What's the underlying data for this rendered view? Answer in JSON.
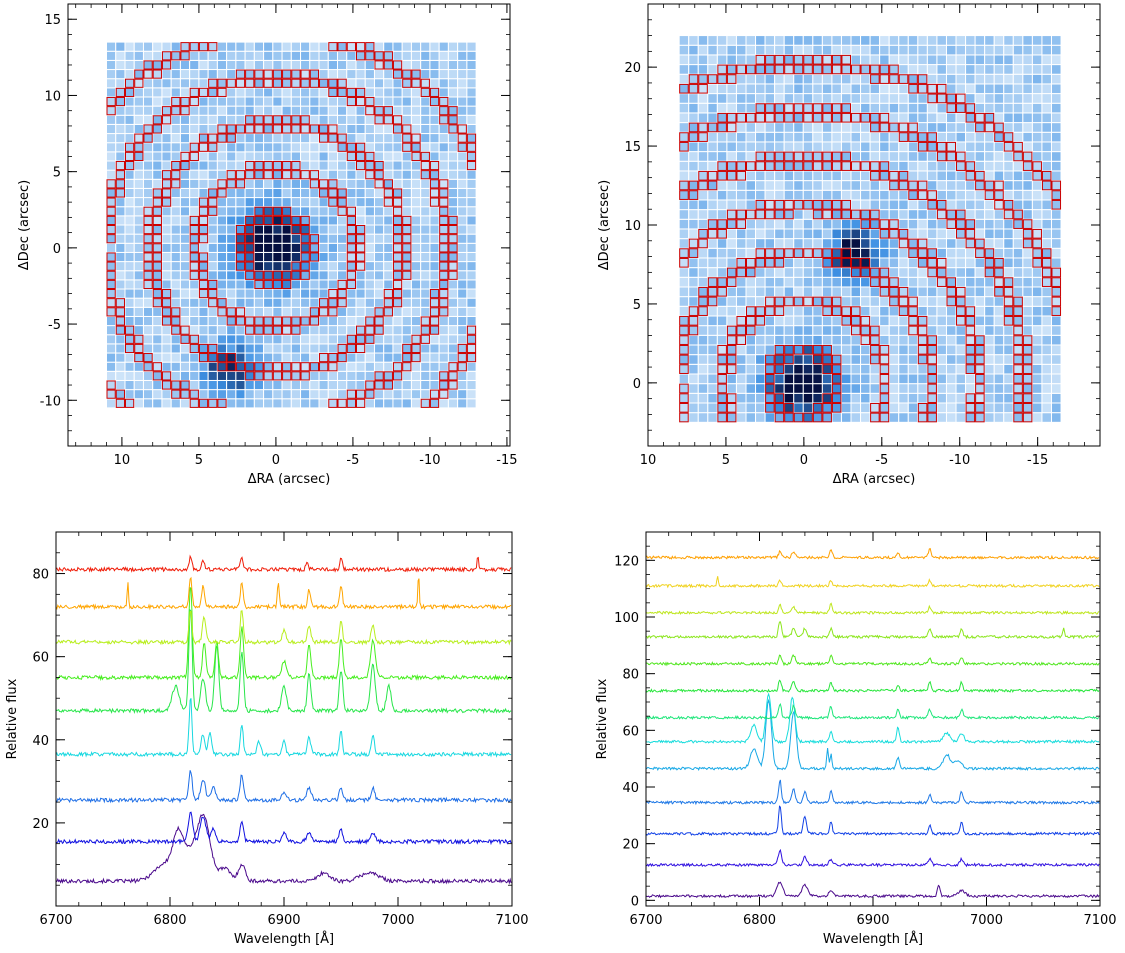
{
  "chart_data": [
    {
      "panel": "top-left",
      "type": "heatmap",
      "title": "",
      "xlabel": "ΔRA (arcsec)",
      "ylabel": "ΔDec (arcsec)",
      "xlim": [
        13.5,
        -15.2
      ],
      "ylim": [
        -13,
        16
      ],
      "xticks": [
        10,
        5,
        0,
        -5,
        -10,
        -15
      ],
      "yticks": [
        -10,
        -5,
        0,
        5,
        10,
        15
      ],
      "grid_extent": {
        "x": [
          11,
          -13
        ],
        "y": [
          -10.5,
          13.5
        ]
      },
      "grid_cells": [
        40,
        40
      ],
      "bright_sources": [
        {
          "x": 0.2,
          "y": 0.2,
          "peak": 1.0,
          "sigma": 1.7
        },
        {
          "x": 3.0,
          "y": -8.0,
          "peak": 0.75,
          "sigma": 1.2
        }
      ],
      "annulus_center": {
        "x": 0.0,
        "y": 0.0
      },
      "annuli_radii": [
        2.2,
        5.2,
        8.2,
        11.2,
        14.2
      ],
      "colors": {
        "cell_border": "#ffffff",
        "annulus": "#cc0000",
        "cmap_low": "#dcecfb",
        "cmap_mid": "#3d90e3",
        "cmap_high": "#050f40"
      }
    },
    {
      "panel": "top-right",
      "type": "heatmap",
      "title": "",
      "xlabel": "ΔRA (arcsec)",
      "ylabel": "ΔDec (arcsec)",
      "xlim": [
        10,
        -19
      ],
      "ylim": [
        -4,
        24
      ],
      "xticks": [
        10,
        5,
        0,
        -5,
        -10,
        -15
      ],
      "yticks": [
        0,
        5,
        10,
        15,
        20
      ],
      "grid_extent": {
        "x": [
          8,
          -16.5
        ],
        "y": [
          -2.5,
          22
        ]
      },
      "grid_cells": [
        40,
        40
      ],
      "bright_sources": [
        {
          "x": 0.0,
          "y": 0.0,
          "peak": 1.0,
          "sigma": 1.6
        },
        {
          "x": -3.3,
          "y": 8.2,
          "peak": 0.95,
          "sigma": 1.1
        }
      ],
      "annulus_center": {
        "x": 0.0,
        "y": 0.0
      },
      "annuli_radii": [
        2.2,
        5.2,
        8.2,
        11.2,
        14.2,
        17.2,
        20.2
      ],
      "colors": {
        "cell_border": "#ffffff",
        "annulus": "#cc0000",
        "cmap_low": "#dcecfb",
        "cmap_mid": "#3d90e3",
        "cmap_high": "#050f40"
      }
    },
    {
      "panel": "bottom-left",
      "type": "line",
      "title": "",
      "xlabel": "Wavelength [Å]",
      "ylabel": "Relative flux",
      "xlim": [
        6700,
        7100
      ],
      "ylim": [
        0,
        90
      ],
      "xticks": [
        6700,
        6800,
        6900,
        7000,
        7100
      ],
      "yticks": [
        20,
        40,
        60,
        80
      ],
      "series": [
        {
          "color": "#4b0a8c",
          "offset": 6,
          "lines": [
            [
              6795,
              4,
              9
            ],
            [
              6808,
              11,
              5
            ],
            [
              6818,
              4,
              4
            ],
            [
              6829,
              16,
              6
            ],
            [
              6848,
              3,
              5
            ],
            [
              6863,
              4,
              3
            ],
            [
              6935,
              2,
              5
            ],
            [
              6975,
              2,
              8
            ]
          ]
        },
        {
          "color": "#1010e0",
          "offset": 15.5,
          "lines": [
            [
              6818,
              7,
              2
            ],
            [
              6829,
              6,
              2.5
            ],
            [
              6838,
              3,
              2
            ],
            [
              6863,
              5,
              1.5
            ],
            [
              6900,
              2,
              2
            ],
            [
              6922,
              2,
              2
            ],
            [
              6950,
              3,
              1.5
            ],
            [
              6978,
              2,
              2
            ]
          ]
        },
        {
          "color": "#1e6ee6",
          "offset": 25.5,
          "lines": [
            [
              6818,
              7,
              1.5
            ],
            [
              6829,
              5,
              2
            ],
            [
              6838,
              3,
              2
            ],
            [
              6863,
              6,
              1.5
            ],
            [
              6900,
              2,
              2
            ],
            [
              6922,
              3,
              2
            ],
            [
              6950,
              3,
              1.5
            ],
            [
              6978,
              3,
              1.5
            ]
          ]
        },
        {
          "color": "#18d8e0",
          "offset": 36.5,
          "lines": [
            [
              6818,
              14,
              1.2
            ],
            [
              6829,
              5,
              1.5
            ],
            [
              6835,
              5,
              1.5
            ],
            [
              6863,
              7,
              1.2
            ],
            [
              6878,
              3,
              1.5
            ],
            [
              6900,
              3,
              1.5
            ],
            [
              6922,
              4,
              1.5
            ],
            [
              6950,
              6,
              1.2
            ],
            [
              6978,
              5,
              1.2
            ]
          ]
        },
        {
          "color": "#28e64a",
          "offset": 47,
          "lines": [
            [
              6805,
              6,
              3
            ],
            [
              6818,
              25,
              1.5
            ],
            [
              6829,
              8,
              2
            ],
            [
              6841,
              16,
              1.8
            ],
            [
              6863,
              14,
              1.5
            ],
            [
              6900,
              6,
              2
            ],
            [
              6922,
              9,
              1.5
            ],
            [
              6950,
              10,
              1.5
            ],
            [
              6978,
              11,
              2
            ],
            [
              6992,
              6,
              2
            ]
          ]
        },
        {
          "color": "#46ee1e",
          "offset": 55,
          "lines": [
            [
              6818,
              22,
              1.5
            ],
            [
              6830,
              8,
              1.5
            ],
            [
              6841,
              9,
              1.5
            ],
            [
              6863,
              12,
              1.5
            ],
            [
              6900,
              4,
              2
            ],
            [
              6922,
              8,
              1.5
            ],
            [
              6950,
              9,
              1.5
            ],
            [
              6978,
              9,
              2
            ]
          ]
        },
        {
          "color": "#b8ee1e",
          "offset": 63.5,
          "lines": [
            [
              6818,
              8,
              1.2
            ],
            [
              6830,
              6,
              1.5
            ],
            [
              6863,
              8,
              1.2
            ],
            [
              6900,
              3,
              1.5
            ],
            [
              6922,
              4,
              1.5
            ],
            [
              6950,
              5,
              1.2
            ],
            [
              6978,
              4,
              1.5
            ]
          ]
        },
        {
          "color": "#ffa500",
          "offset": 72,
          "lines": [
            [
              6763,
              6,
              0.6
            ],
            [
              6818,
              7,
              1.2
            ],
            [
              6829,
              5,
              1.2
            ],
            [
              6863,
              6,
              1.2
            ],
            [
              6895,
              6,
              0.8
            ],
            [
              6922,
              4,
              1.2
            ],
            [
              6950,
              5,
              1.2
            ],
            [
              7018,
              8,
              0.6
            ]
          ]
        },
        {
          "color": "#f01e0a",
          "offset": 81,
          "lines": [
            [
              6818,
              3,
              1.2
            ],
            [
              6829,
              2,
              1.2
            ],
            [
              6863,
              3,
              1.2
            ],
            [
              6920,
              2,
              1
            ],
            [
              6950,
              3,
              1
            ],
            [
              7070,
              3,
              0.6
            ]
          ]
        }
      ]
    },
    {
      "panel": "bottom-right",
      "type": "line",
      "title": "",
      "xlabel": "Wavelength [Å]",
      "ylabel": "Relative flux",
      "xlim": [
        6700,
        7100
      ],
      "ylim": [
        -2,
        130
      ],
      "xticks": [
        6700,
        6800,
        6900,
        7000,
        7100
      ],
      "yticks": [
        0,
        20,
        40,
        60,
        80,
        100,
        120
      ],
      "series": [
        {
          "color": "#4b0a8c",
          "offset": 1.5,
          "lines": [
            [
              6818,
              5,
              2.5
            ],
            [
              6840,
              4,
              2.5
            ],
            [
              6863,
              2,
              2
            ],
            [
              6958,
              4,
              1.2
            ],
            [
              6978,
              2,
              3
            ]
          ]
        },
        {
          "color": "#3010e0",
          "offset": 12.5,
          "lines": [
            [
              6818,
              5,
              1.5
            ],
            [
              6840,
              3,
              1.5
            ],
            [
              6863,
              2,
              1.5
            ],
            [
              6950,
              2,
              1.5
            ],
            [
              6978,
              2,
              1.5
            ]
          ]
        },
        {
          "color": "#1040e6",
          "offset": 23.5,
          "lines": [
            [
              6818,
              10,
              1.2
            ],
            [
              6840,
              6,
              1.5
            ],
            [
              6863,
              4,
              1.2
            ],
            [
              6950,
              3,
              1.2
            ],
            [
              6978,
              4,
              1.2
            ]
          ]
        },
        {
          "color": "#1e78e6",
          "offset": 34.5,
          "lines": [
            [
              6818,
              8,
              1.2
            ],
            [
              6830,
              5,
              1.5
            ],
            [
              6840,
              4,
              1.5
            ],
            [
              6863,
              4,
              1.2
            ],
            [
              6950,
              3,
              1.2
            ],
            [
              6978,
              4,
              1.2
            ]
          ]
        },
        {
          "color": "#18a8e6",
          "offset": 46.5,
          "lines": [
            [
              6795,
              7,
              3
            ],
            [
              6808,
              24,
              2.5
            ],
            [
              6830,
              20,
              2.5
            ],
            [
              6860,
              7,
              0.8
            ],
            [
              6863,
              5,
              0.8
            ],
            [
              6922,
              4,
              1.5
            ],
            [
              6965,
              5,
              3
            ],
            [
              6975,
              3,
              3
            ]
          ]
        },
        {
          "color": "#18dcdc",
          "offset": 56,
          "lines": [
            [
              6795,
              6,
              2.5
            ],
            [
              6808,
              17,
              2.2
            ],
            [
              6829,
              16,
              2.2
            ],
            [
              6863,
              4,
              1.2
            ],
            [
              6922,
              5,
              1.2
            ],
            [
              6965,
              3,
              3
            ],
            [
              6978,
              3,
              2
            ]
          ]
        },
        {
          "color": "#1ee67a",
          "offset": 64.5,
          "lines": [
            [
              6818,
              5,
              1.2
            ],
            [
              6830,
              4,
              1.5
            ],
            [
              6863,
              4,
              1.2
            ],
            [
              6922,
              3,
              1.2
            ],
            [
              6950,
              3,
              1.2
            ],
            [
              6978,
              3,
              1.2
            ]
          ]
        },
        {
          "color": "#28e63c",
          "offset": 74,
          "lines": [
            [
              6818,
              4,
              1.2
            ],
            [
              6830,
              3,
              1.5
            ],
            [
              6863,
              3,
              1.2
            ],
            [
              6922,
              2,
              1.2
            ],
            [
              6950,
              3,
              1.2
            ],
            [
              6978,
              3,
              1.2
            ]
          ]
        },
        {
          "color": "#50e61e",
          "offset": 83.5,
          "lines": [
            [
              6818,
              3,
              1.2
            ],
            [
              6830,
              3,
              1.5
            ],
            [
              6863,
              3,
              1.2
            ],
            [
              6950,
              2,
              1.2
            ],
            [
              6978,
              2,
              1.2
            ]
          ]
        },
        {
          "color": "#8ce61e",
          "offset": 93,
          "lines": [
            [
              6818,
              6,
              1.2
            ],
            [
              6830,
              3,
              1.5
            ],
            [
              6840,
              3,
              1.5
            ],
            [
              6863,
              3,
              1.2
            ],
            [
              6950,
              3,
              1.2
            ],
            [
              6978,
              3,
              1.2
            ],
            [
              7068,
              3,
              0.8
            ]
          ]
        },
        {
          "color": "#bee61e",
          "offset": 101.5,
          "lines": [
            [
              6818,
              3,
              1.2
            ],
            [
              6830,
              2,
              1.5
            ],
            [
              6863,
              3,
              1.2
            ],
            [
              6950,
              2,
              1.2
            ]
          ]
        },
        {
          "color": "#f0d21e",
          "offset": 111,
          "lines": [
            [
              6763,
              4,
              0.6
            ],
            [
              6818,
              2,
              1.2
            ],
            [
              6863,
              2,
              1.2
            ],
            [
              6950,
              2,
              1.2
            ]
          ]
        },
        {
          "color": "#ffa000",
          "offset": 121,
          "lines": [
            [
              6818,
              2,
              1.2
            ],
            [
              6830,
              2,
              1.5
            ],
            [
              6863,
              3,
              1.2
            ],
            [
              6922,
              2,
              1.2
            ],
            [
              6950,
              3,
              1.2
            ]
          ]
        }
      ]
    }
  ]
}
